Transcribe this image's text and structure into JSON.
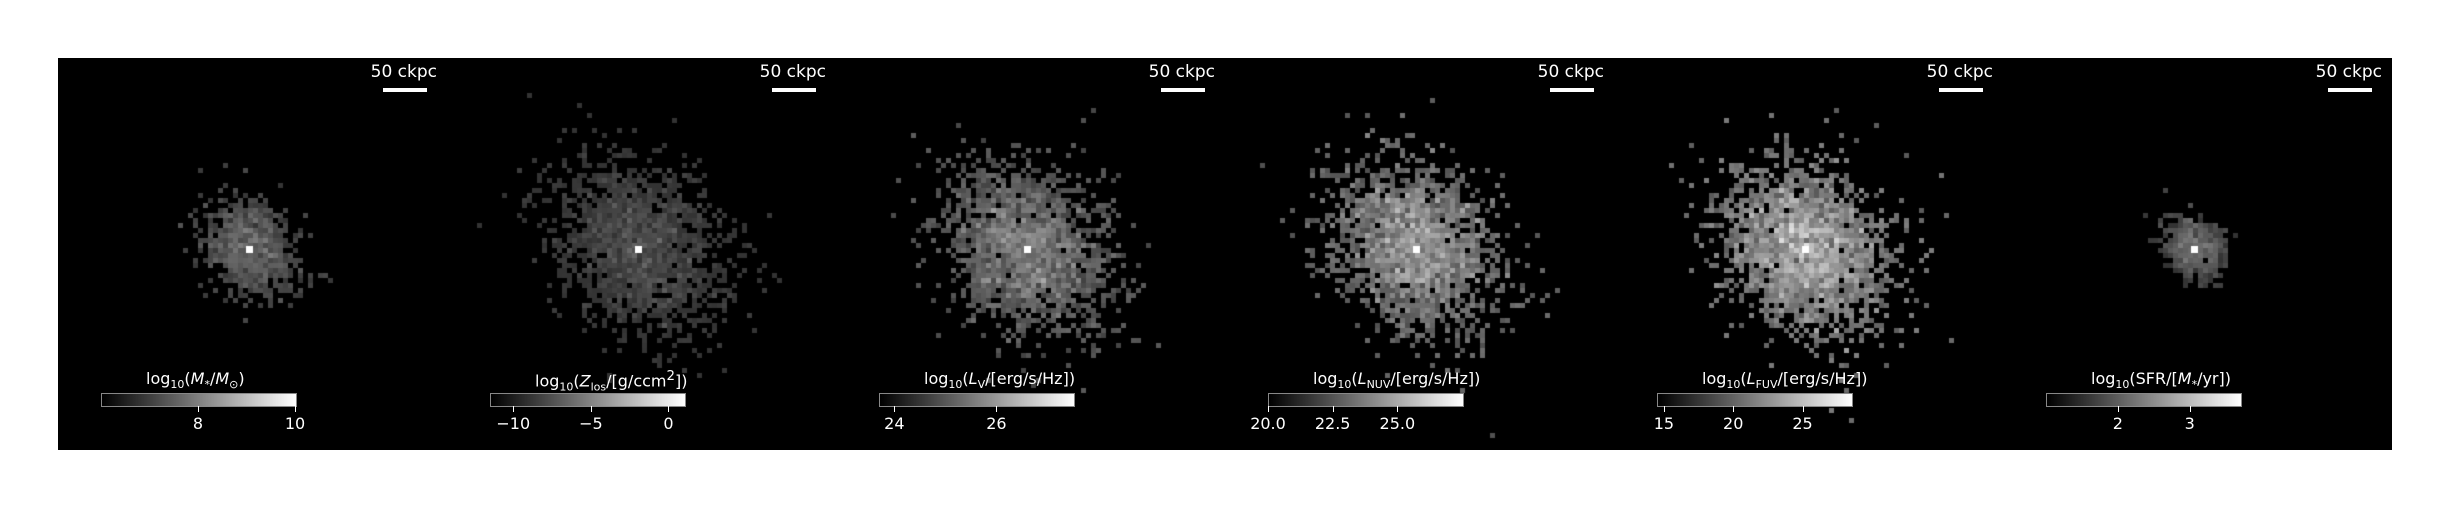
{
  "figure": {
    "scale_label": "50 ckpc",
    "panels": [
      {
        "id": "stellar-mass",
        "cbar_title_html": "log<sub>10</sub>(<i>M</i><sub>*</sub>/<i>M</i><sub>⊙</sub>)",
        "cbar_range": [
          6.0,
          10.0
        ],
        "ticks": [
          {
            "value": 8,
            "label": "8"
          },
          {
            "value": 10,
            "label": "10"
          }
        ],
        "image": {
          "spread": 0.55,
          "density": 0.35,
          "brightness": 0.55,
          "core": 1.0
        }
      },
      {
        "id": "metallicity",
        "cbar_title_html": "log<sub>10</sub>(<i>Z</i><sub>los</sub>/[g/ccm<sup>2</sup>])",
        "cbar_range": [
          -11.5,
          1.0
        ],
        "ticks": [
          {
            "value": -10,
            "label": "−10"
          },
          {
            "value": -5,
            "label": "−5"
          },
          {
            "value": 0,
            "label": "0"
          }
        ],
        "image": {
          "spread": 1.0,
          "density": 0.75,
          "brightness": 0.45,
          "core": 1.0
        }
      },
      {
        "id": "v-band",
        "cbar_title_html": "log<sub>10</sub>(<i>L</i><sub>V</sub>/[erg/s/Hz])",
        "cbar_range": [
          23.7,
          27.5
        ],
        "ticks": [
          {
            "value": 24,
            "label": "24"
          },
          {
            "value": 26,
            "label": "26"
          }
        ],
        "image": {
          "spread": 1.0,
          "density": 0.8,
          "brightness": 0.7,
          "core": 0.95
        }
      },
      {
        "id": "nuv",
        "cbar_title_html": "log<sub>10</sub>(<i>L</i><sub>NUV</sub>/[erg/s/Hz])",
        "cbar_range": [
          20.0,
          27.5
        ],
        "ticks": [
          {
            "value": 20.0,
            "label": "20.0"
          },
          {
            "value": 22.5,
            "label": "22.5"
          },
          {
            "value": 25.0,
            "label": "25.0"
          }
        ],
        "image": {
          "spread": 1.0,
          "density": 0.8,
          "brightness": 0.85,
          "core": 0.95
        }
      },
      {
        "id": "fuv",
        "cbar_title_html": "log<sub>10</sub>(<i>L</i><sub>FUV</sub>/[erg/s/Hz])",
        "cbar_range": [
          14.5,
          28.5
        ],
        "ticks": [
          {
            "value": 15,
            "label": "15"
          },
          {
            "value": 20,
            "label": "20"
          },
          {
            "value": 25,
            "label": "25"
          }
        ],
        "image": {
          "spread": 1.0,
          "density": 0.85,
          "brightness": 0.95,
          "core": 0.95
        }
      },
      {
        "id": "sfr",
        "cbar_title_html": "log<sub>10</sub>(SFR/[<i>M</i><sub>*</sub>/yr])",
        "cbar_range": [
          1.0,
          3.7
        ],
        "ticks": [
          {
            "value": 2,
            "label": "2"
          },
          {
            "value": 3,
            "label": "3"
          }
        ],
        "image": {
          "spread": 0.35,
          "density": 0.3,
          "brightness": 0.5,
          "core": 1.0
        }
      }
    ]
  }
}
